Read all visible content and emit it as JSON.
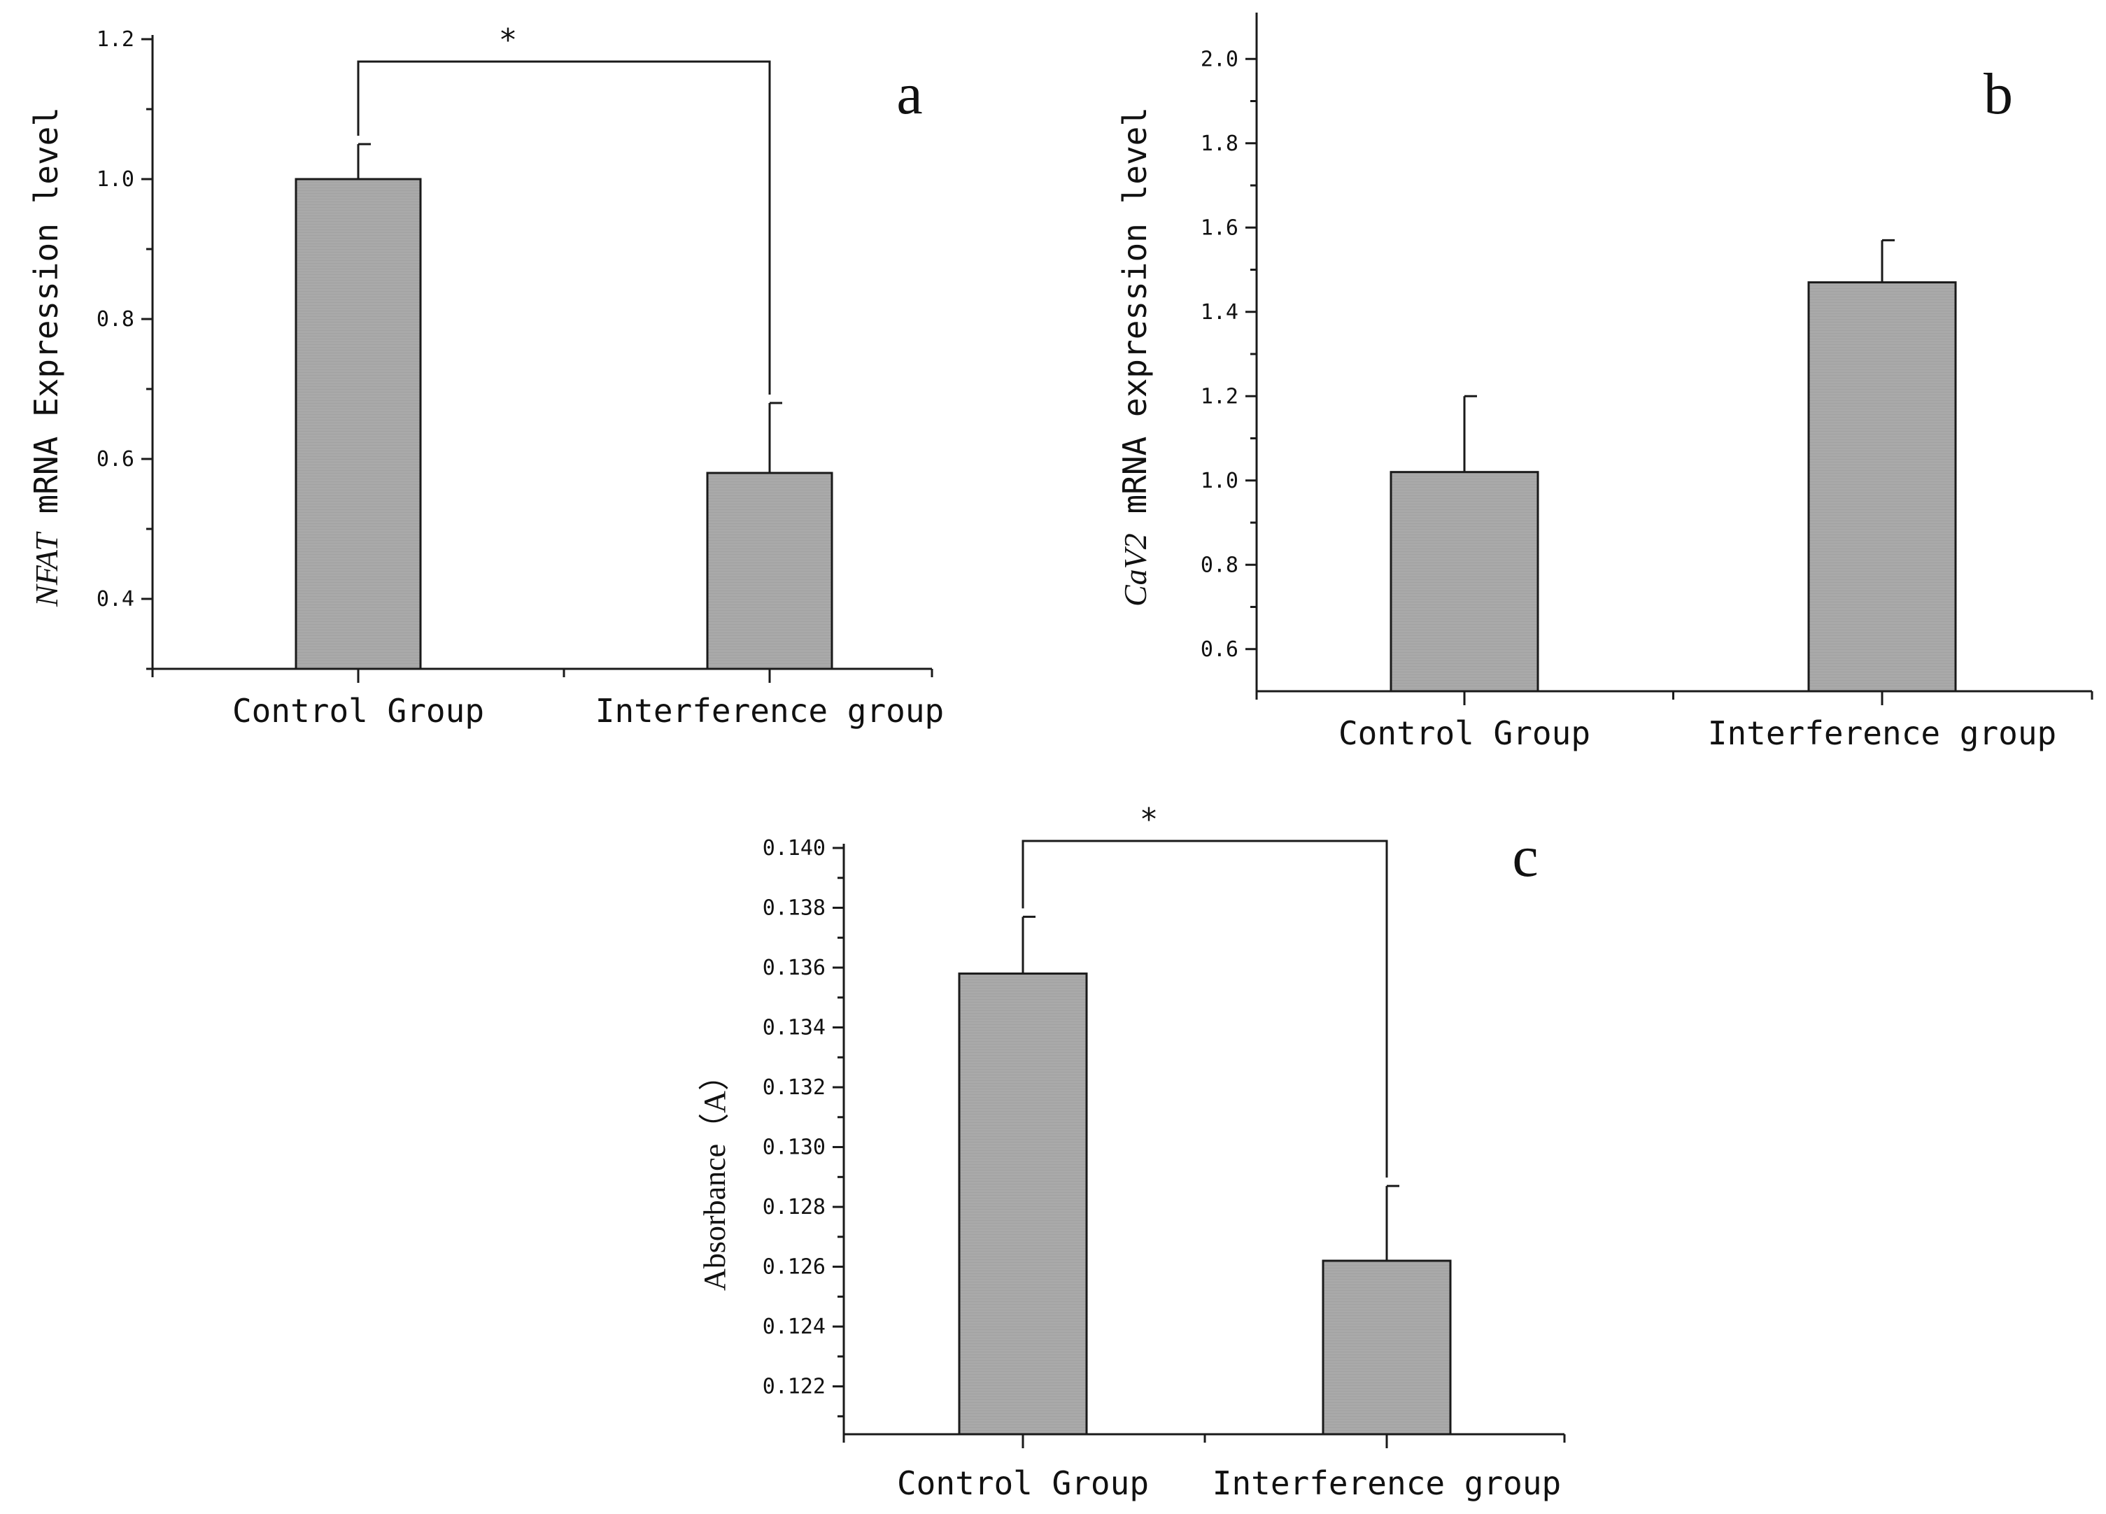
{
  "chart_data": [
    {
      "type": "bar",
      "panel_label": "a",
      "ylabel_italic": "NFAT",
      "ylabel_rest": " mRNA Expression level",
      "xlabel": "",
      "categories": [
        "Control Group",
        "Interference group"
      ],
      "values": [
        1.0,
        0.58
      ],
      "errors": [
        0.05,
        0.1
      ],
      "ylim": [
        0.3,
        1.2
      ],
      "yticks": [
        0.4,
        0.6,
        0.8,
        1.0,
        1.2
      ],
      "tick_labels": [
        "0.4",
        "0.6",
        "0.8",
        "1.0",
        "1.2"
      ],
      "significance": {
        "label": "*",
        "from": 0,
        "to": 1,
        "level": 1.17
      },
      "bar_color": "#a7a7a7"
    },
    {
      "type": "bar",
      "panel_label": "b",
      "ylabel_italic": "CaV2",
      "ylabel_rest": " mRNA expression level",
      "xlabel": "",
      "categories": [
        "Control Group",
        "Interference group"
      ],
      "values": [
        1.02,
        1.47
      ],
      "errors": [
        0.18,
        0.1
      ],
      "ylim": [
        0.5,
        2.1
      ],
      "yticks": [
        0.6,
        0.8,
        1.0,
        1.2,
        1.4,
        1.6,
        1.8,
        2.0
      ],
      "tick_labels": [
        "0.6",
        "0.8",
        "1.0",
        "1.2",
        "1.4",
        "1.6",
        "1.8",
        "2.0"
      ],
      "bar_color": "#a7a7a7"
    },
    {
      "type": "bar",
      "panel_label": "c",
      "ylabel_italic": "",
      "ylabel_rest": "Absorbance（A）",
      "xlabel": "",
      "categories": [
        "Control Group",
        "Interference group"
      ],
      "values": [
        0.1358,
        0.1262
      ],
      "errors": [
        0.0019,
        0.0025
      ],
      "ylim": [
        0.1204,
        0.14
      ],
      "yticks": [
        0.122,
        0.124,
        0.126,
        0.128,
        0.13,
        0.132,
        0.134,
        0.136,
        0.138,
        0.14
      ],
      "tick_labels": [
        "0.122",
        "0.124",
        "0.126",
        "0.128",
        "0.130",
        "0.132",
        "0.134",
        "0.136",
        "0.138",
        "0.140"
      ],
      "significance": {
        "label": "*",
        "from": 0,
        "to": 1,
        "level": 0.1403
      },
      "bar_color": "#a7a7a7"
    }
  ]
}
